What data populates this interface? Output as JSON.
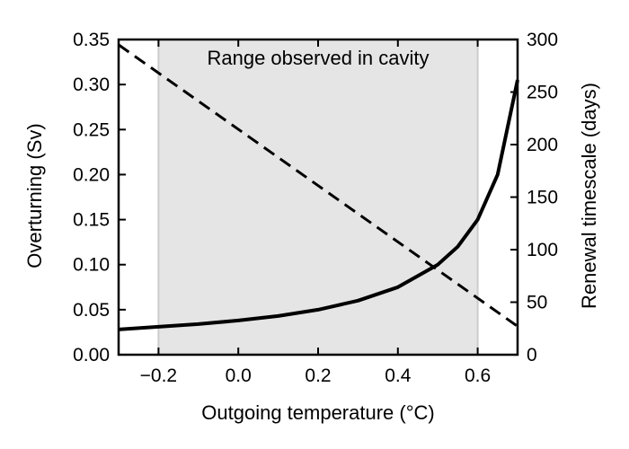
{
  "chart_data": {
    "type": "line",
    "xlabel": "Outgoing temperature (°C)",
    "ylabel": "Overturning (Sv)",
    "y2label": "Renewal timescale (days)",
    "xlim": [
      -0.3,
      0.7
    ],
    "ylim": [
      0,
      0.35
    ],
    "y2lim": [
      0,
      300
    ],
    "xticks": [
      -0.2,
      0.0,
      0.2,
      0.4,
      0.6
    ],
    "xtick_labels": [
      "−0.2",
      "0.0",
      "0.2",
      "0.4",
      "0.6"
    ],
    "yticks": [
      0.0,
      0.05,
      0.1,
      0.15,
      0.2,
      0.25,
      0.3,
      0.35
    ],
    "ytick_labels": [
      "0.00",
      "0.05",
      "0.10",
      "0.15",
      "0.20",
      "0.25",
      "0.30",
      "0.35"
    ],
    "y2ticks": [
      0,
      50,
      100,
      150,
      200,
      250,
      300
    ],
    "y2tick_labels": [
      "0",
      "50",
      "100",
      "150",
      "200",
      "250",
      "300"
    ],
    "shaded_region": {
      "x_range": [
        -0.2,
        0.6
      ],
      "label": "Range observed in cavity",
      "color": "#e5e5e5"
    },
    "grid": false,
    "series": [
      {
        "style": "solid",
        "axis": "left",
        "x": [
          -0.3,
          -0.2,
          -0.1,
          0.0,
          0.1,
          0.2,
          0.3,
          0.4,
          0.5,
          0.55,
          0.6,
          0.65,
          0.7
        ],
        "y": [
          0.028,
          0.031,
          0.034,
          0.038,
          0.043,
          0.05,
          0.06,
          0.075,
          0.1,
          0.12,
          0.15,
          0.2,
          0.305
        ]
      },
      {
        "style": "dashed",
        "axis": "right",
        "x": [
          -0.3,
          0.7
        ],
        "y": [
          295,
          27
        ]
      }
    ]
  }
}
